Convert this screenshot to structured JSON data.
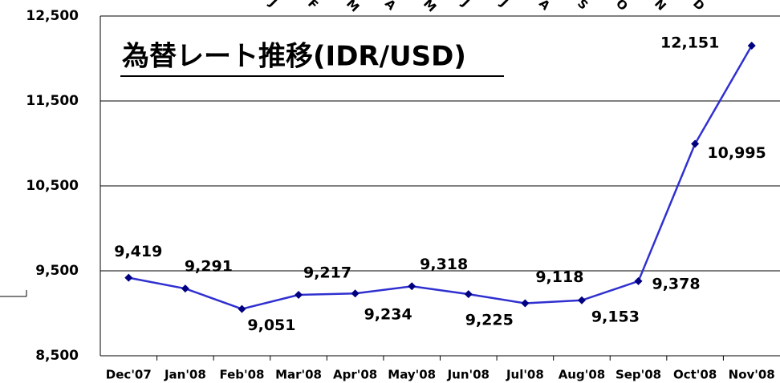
{
  "chart_data": {
    "type": "line",
    "title": "為替レート推移(IDR/USD)",
    "top_letters": [
      "J",
      "F",
      "M",
      "A",
      "M",
      "J",
      "J",
      "A",
      "S",
      "O",
      "N",
      "D"
    ],
    "categories": [
      "Dec'07",
      "Jan'08",
      "Feb'08",
      "Mar'08",
      "Apr'08",
      "May'08",
      "Jun'08",
      "Jul'08",
      "Aug'08",
      "Sep'08",
      "Oct'08",
      "Nov'08"
    ],
    "values": [
      9419,
      9291,
      9051,
      9217,
      9234,
      9318,
      9225,
      9118,
      9153,
      9378,
      10995,
      12151
    ],
    "value_labels": [
      "9,419",
      "9,291",
      "9,051",
      "9,217",
      "9,234",
      "9,318",
      "9,225",
      "9,118",
      "9,153",
      "9,378",
      "10,995",
      "12,151"
    ],
    "color": "#3030d0",
    "marker_color": "#000080",
    "ylim": [
      8500,
      12500
    ],
    "yticks": [
      {
        "value": 8500,
        "label": "8,500"
      },
      {
        "value": 9500,
        "label": "9,500"
      },
      {
        "value": 10500,
        "label": "10,500"
      },
      {
        "value": 11500,
        "label": "11,500"
      },
      {
        "value": 12500,
        "label": "12,500"
      }
    ],
    "grid": true
  }
}
